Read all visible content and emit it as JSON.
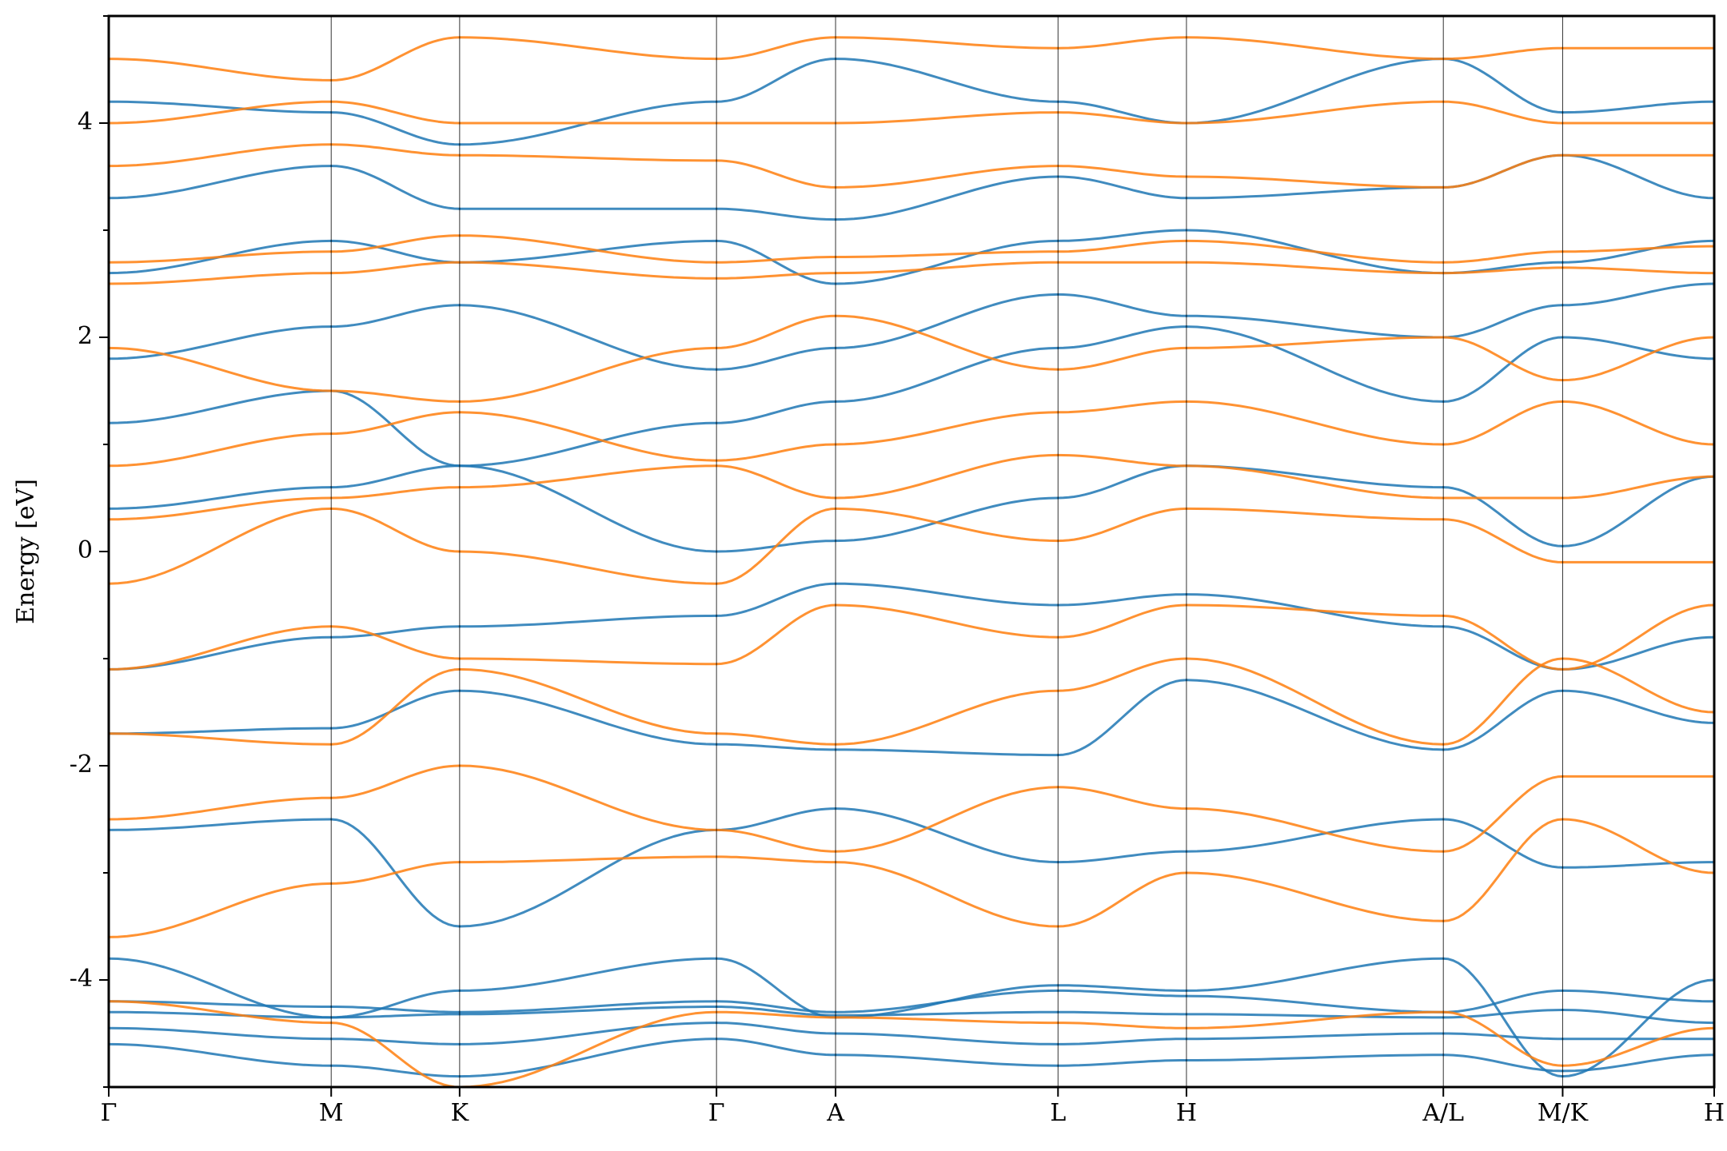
{
  "chart_data": {
    "type": "line",
    "title": "",
    "xlabel": "",
    "ylabel": "Energy [eV]",
    "ylim": [
      -5,
      5
    ],
    "y_ticks": [
      -4,
      -2,
      0,
      2,
      4
    ],
    "y_tick_labels": [
      "-4",
      "-2",
      "0",
      "2",
      "4"
    ],
    "grid": false,
    "kpath": {
      "labels": [
        "Γ",
        "M",
        "K",
        "Γ",
        "A",
        "L",
        "H",
        "A/L",
        "M/K",
        "H"
      ],
      "positions": [
        0,
        1.732,
        2.732,
        4.732,
        5.659,
        7.391,
        8.391,
        10.391,
        11.32,
        12.5
      ],
      "breaks": [
        7,
        8
      ]
    },
    "colors": {
      "spin_up": "#1f77b4",
      "spin_down": "#ff7f0e"
    },
    "series": [
      {
        "color": "#1f77b4",
        "bands": [
          [
            -4.3,
            -4.35,
            -4.32,
            -4.25,
            -4.33,
            -4.3,
            -4.32,
            -4.35,
            -4.28,
            -4.4
          ],
          [
            -4.45,
            -4.55,
            -4.6,
            -4.4,
            -4.5,
            -4.6,
            -4.55,
            -4.5,
            -4.55,
            -4.55
          ],
          [
            -4.6,
            -4.8,
            -4.9,
            -4.55,
            -4.7,
            -4.8,
            -4.75,
            -4.7,
            -4.85,
            -4.7
          ],
          [
            -4.2,
            -4.25,
            -4.3,
            -4.2,
            -4.3,
            -4.1,
            -4.15,
            -4.3,
            -4.1,
            -4.2
          ],
          [
            -3.8,
            -4.35,
            -4.1,
            -3.8,
            -4.35,
            -4.05,
            -4.1,
            -3.8,
            -4.9,
            -4.0
          ],
          [
            -2.6,
            -2.5,
            -3.5,
            -2.6,
            -2.4,
            -2.9,
            -2.8,
            -2.5,
            -2.95,
            -2.9
          ],
          [
            -1.7,
            -1.65,
            -1.3,
            -1.8,
            -1.85,
            -1.9,
            -1.2,
            -1.85,
            -1.3,
            -1.6
          ],
          [
            -1.1,
            -0.8,
            -0.7,
            -0.6,
            -0.3,
            -0.5,
            -0.4,
            -0.7,
            -1.1,
            -0.8
          ],
          [
            0.4,
            0.6,
            0.8,
            0.0,
            0.1,
            0.5,
            0.8,
            0.6,
            0.05,
            0.7
          ],
          [
            1.2,
            1.5,
            0.8,
            1.2,
            1.4,
            1.9,
            2.1,
            1.4,
            2.0,
            1.8
          ],
          [
            1.8,
            2.1,
            2.3,
            1.7,
            1.9,
            2.4,
            2.2,
            2.0,
            2.3,
            2.5
          ],
          [
            2.6,
            2.9,
            2.7,
            2.9,
            2.5,
            2.9,
            3.0,
            2.6,
            2.7,
            2.9
          ],
          [
            3.3,
            3.6,
            3.2,
            3.2,
            3.1,
            3.5,
            3.3,
            3.4,
            3.7,
            3.3
          ],
          [
            4.2,
            4.1,
            3.8,
            4.2,
            4.6,
            4.2,
            4.0,
            4.6,
            4.1,
            4.2
          ]
        ]
      },
      {
        "color": "#ff7f0e",
        "bands": [
          [
            -4.2,
            -4.4,
            -5.0,
            -4.3,
            -4.35,
            -4.4,
            -4.45,
            -4.3,
            -4.8,
            -4.45
          ],
          [
            -3.6,
            -3.1,
            -2.9,
            -2.85,
            -2.9,
            -3.5,
            -3.0,
            -3.45,
            -2.5,
            -3.0
          ],
          [
            -2.5,
            -2.3,
            -2.0,
            -2.6,
            -2.8,
            -2.2,
            -2.4,
            -2.8,
            -2.1,
            -2.1
          ],
          [
            -1.7,
            -1.8,
            -1.1,
            -1.7,
            -1.8,
            -1.3,
            -1.0,
            -1.8,
            -1.0,
            -1.5
          ],
          [
            -1.1,
            -0.7,
            -1.0,
            -1.05,
            -0.5,
            -0.8,
            -0.5,
            -0.6,
            -1.1,
            -0.5
          ],
          [
            -0.3,
            0.4,
            0.0,
            -0.3,
            0.4,
            0.1,
            0.4,
            0.3,
            -0.1,
            -0.1
          ],
          [
            0.3,
            0.5,
            0.6,
            0.8,
            0.5,
            0.9,
            0.8,
            0.5,
            0.5,
            0.7
          ],
          [
            0.8,
            1.1,
            1.3,
            0.85,
            1.0,
            1.3,
            1.4,
            1.0,
            1.4,
            1.0
          ],
          [
            1.9,
            1.5,
            1.4,
            1.9,
            2.2,
            1.7,
            1.9,
            2.0,
            1.6,
            2.0
          ],
          [
            2.5,
            2.6,
            2.7,
            2.55,
            2.6,
            2.7,
            2.7,
            2.6,
            2.65,
            2.6
          ],
          [
            2.7,
            2.8,
            2.95,
            2.7,
            2.75,
            2.8,
            2.9,
            2.7,
            2.8,
            2.85
          ],
          [
            3.6,
            3.8,
            3.7,
            3.65,
            3.4,
            3.6,
            3.5,
            3.4,
            3.7,
            3.7
          ],
          [
            4.0,
            4.2,
            4.0,
            4.0,
            4.0,
            4.1,
            4.0,
            4.2,
            4.0,
            4.0
          ],
          [
            4.6,
            4.4,
            4.8,
            4.6,
            4.8,
            4.7,
            4.8,
            4.6,
            4.7,
            4.7
          ]
        ]
      }
    ]
  }
}
